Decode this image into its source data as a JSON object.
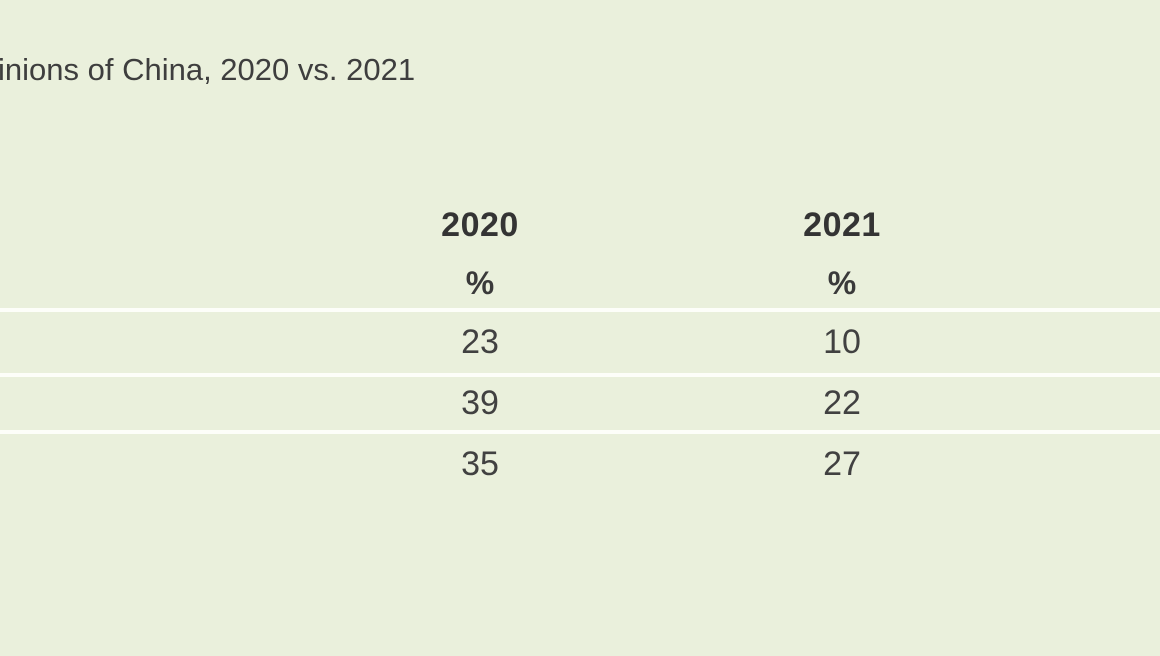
{
  "title": "inions of China, 2020 vs. 2021",
  "table": {
    "columns": [
      {
        "label": "2020",
        "unit": "%"
      },
      {
        "label": "2021",
        "unit": "%"
      }
    ],
    "rows": [
      {
        "y2020": "23",
        "y2021": "10"
      },
      {
        "y2020": "39",
        "y2021": "22"
      },
      {
        "y2020": "35",
        "y2021": "27"
      }
    ]
  },
  "colors": {
    "background": "#eaf0dc",
    "divider": "#fdfef9",
    "title_text": "#3e3e3e",
    "header_text": "#343434",
    "value_text": "#414141"
  },
  "chart_data": {
    "type": "table",
    "title": "inions of China, 2020 vs. 2021",
    "columns": [
      "2020",
      "2021"
    ],
    "units": [
      "%",
      "%"
    ],
    "rows": [
      [
        23,
        10
      ],
      [
        39,
        22
      ],
      [
        35,
        27
      ]
    ]
  }
}
